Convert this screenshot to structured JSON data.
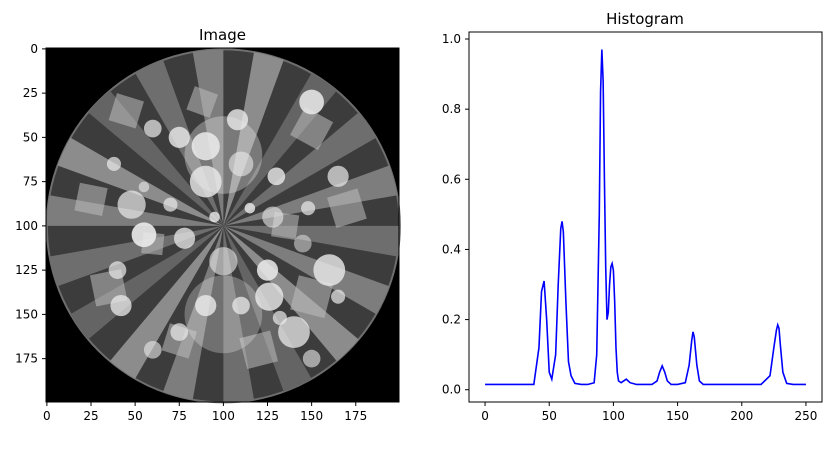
{
  "chart_data": [
    {
      "type": "image",
      "title": "Image",
      "xlabel": "",
      "ylabel": "",
      "xlim": [
        0,
        199
      ],
      "ylim": [
        199,
        0
      ],
      "x_ticks": [
        0,
        25,
        50,
        75,
        100,
        125,
        150,
        175
      ],
      "y_ticks": [
        0,
        25,
        50,
        75,
        100,
        125,
        150,
        175
      ],
      "content": "grayscale phantom: disc of radial wedges with overlaid circles and squares on black background",
      "colormap": "gray"
    },
    {
      "type": "line",
      "title": "Histogram",
      "xlabel": "",
      "ylabel": "",
      "xlim": [
        0,
        255
      ],
      "ylim": [
        0,
        1.0
      ],
      "x_ticks": [
        0,
        50,
        100,
        150,
        200,
        250
      ],
      "y_ticks": [
        0.0,
        0.2,
        0.4,
        0.6,
        0.8,
        1.0
      ],
      "grid": false,
      "series": [
        {
          "color": "#0000ff",
          "x": [
            0,
            38,
            42,
            44,
            46,
            48,
            50,
            52,
            55,
            57,
            59,
            60,
            61,
            63,
            65,
            67,
            70,
            75,
            80,
            85,
            87,
            89,
            90,
            91,
            92,
            93,
            94,
            95,
            96,
            97,
            98,
            99,
            100,
            101,
            102,
            103,
            104,
            106,
            108,
            110,
            113,
            118,
            130,
            134,
            136,
            138,
            140,
            142,
            145,
            150,
            156,
            159,
            161,
            162,
            163,
            165,
            167,
            170,
            180,
            215,
            222,
            225,
            227,
            228,
            229,
            230,
            232,
            235,
            240,
            250
          ],
          "y": [
            0.015,
            0.015,
            0.12,
            0.28,
            0.31,
            0.2,
            0.05,
            0.03,
            0.1,
            0.3,
            0.46,
            0.48,
            0.45,
            0.25,
            0.08,
            0.04,
            0.018,
            0.015,
            0.015,
            0.02,
            0.1,
            0.5,
            0.85,
            0.97,
            0.88,
            0.6,
            0.35,
            0.2,
            0.22,
            0.3,
            0.35,
            0.36,
            0.34,
            0.25,
            0.12,
            0.05,
            0.025,
            0.02,
            0.025,
            0.03,
            0.02,
            0.015,
            0.015,
            0.025,
            0.05,
            0.068,
            0.05,
            0.025,
            0.015,
            0.015,
            0.02,
            0.07,
            0.14,
            0.165,
            0.15,
            0.07,
            0.025,
            0.015,
            0.015,
            0.015,
            0.04,
            0.12,
            0.17,
            0.185,
            0.175,
            0.13,
            0.05,
            0.018,
            0.015,
            0.015
          ]
        }
      ]
    }
  ]
}
